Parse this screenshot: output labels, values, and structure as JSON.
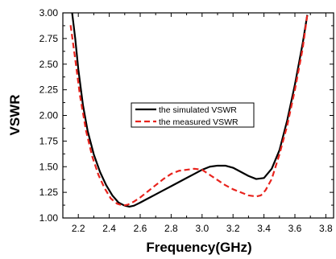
{
  "chart_data": {
    "type": "line",
    "xlabel": "Frequency(GHz)",
    "ylabel": "VSWR",
    "xlim": [
      2.1,
      3.85
    ],
    "ylim": [
      1.0,
      3.0
    ],
    "x_ticks": [
      "2.2",
      "2.4",
      "2.6",
      "2.8",
      "3.0",
      "3.2",
      "3.4",
      "3.6",
      "3.8"
    ],
    "y_ticks": [
      "1.00",
      "1.25",
      "1.50",
      "1.75",
      "2.00",
      "2.25",
      "2.50",
      "2.75",
      "3.00"
    ],
    "grid": false,
    "legend_position": "center-right",
    "series": [
      {
        "name": "the simulated VSWR",
        "color": "#000000",
        "style": "solid",
        "x": [
          2.16,
          2.18,
          2.2,
          2.23,
          2.26,
          2.3,
          2.34,
          2.38,
          2.42,
          2.46,
          2.5,
          2.53,
          2.56,
          2.6,
          2.65,
          2.7,
          2.75,
          2.8,
          2.85,
          2.9,
          2.95,
          3.0,
          3.05,
          3.1,
          3.15,
          3.2,
          3.25,
          3.3,
          3.35,
          3.4,
          3.45,
          3.5,
          3.55,
          3.6,
          3.65,
          3.68
        ],
        "y": [
          3.0,
          2.75,
          2.45,
          2.1,
          1.85,
          1.62,
          1.45,
          1.32,
          1.22,
          1.15,
          1.12,
          1.11,
          1.12,
          1.15,
          1.19,
          1.23,
          1.27,
          1.31,
          1.35,
          1.39,
          1.43,
          1.47,
          1.5,
          1.51,
          1.51,
          1.49,
          1.45,
          1.41,
          1.38,
          1.39,
          1.48,
          1.66,
          1.95,
          2.3,
          2.7,
          2.98
        ]
      },
      {
        "name": "the measured VSWR",
        "color": "#e8231d",
        "style": "dashed",
        "x": [
          2.15,
          2.18,
          2.21,
          2.25,
          2.29,
          2.33,
          2.37,
          2.41,
          2.45,
          2.49,
          2.52,
          2.56,
          2.6,
          2.65,
          2.7,
          2.75,
          2.8,
          2.85,
          2.9,
          2.95,
          3.0,
          3.03,
          3.06,
          3.1,
          3.15,
          3.2,
          3.25,
          3.3,
          3.35,
          3.38,
          3.41,
          3.45,
          3.5,
          3.55,
          3.6,
          3.65,
          3.68
        ],
        "y": [
          2.88,
          2.55,
          2.2,
          1.85,
          1.6,
          1.42,
          1.29,
          1.19,
          1.14,
          1.12,
          1.13,
          1.16,
          1.2,
          1.26,
          1.32,
          1.38,
          1.43,
          1.46,
          1.47,
          1.48,
          1.47,
          1.44,
          1.41,
          1.37,
          1.32,
          1.28,
          1.25,
          1.22,
          1.21,
          1.22,
          1.27,
          1.38,
          1.62,
          1.9,
          2.25,
          2.65,
          2.98
        ]
      }
    ]
  }
}
